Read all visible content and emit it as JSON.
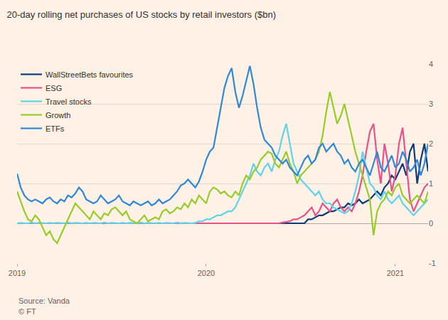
{
  "chart_data": {
    "type": "line",
    "title": "20-day rolling net purchases of US stocks by retail investors ($bn)",
    "source": "Source: Vanda",
    "credit": "© FT",
    "categories": [
      "2019",
      null,
      null,
      null,
      null,
      null,
      null,
      null,
      null,
      null,
      null,
      null,
      null,
      null,
      null,
      null,
      null,
      null,
      null,
      null,
      null,
      null,
      null,
      null,
      null,
      null,
      null,
      null,
      null,
      null,
      null,
      null,
      null,
      null,
      null,
      null,
      null,
      null,
      null,
      null,
      null,
      null,
      null,
      null,
      null,
      null,
      null,
      null,
      null,
      null,
      null,
      null,
      "2020",
      null,
      null,
      null,
      null,
      null,
      null,
      null,
      null,
      null,
      null,
      null,
      null,
      null,
      null,
      null,
      null,
      null,
      null,
      null,
      null,
      null,
      null,
      null,
      null,
      null,
      null,
      null,
      null,
      null,
      null,
      null,
      null,
      null,
      null,
      null,
      null,
      null,
      null,
      null,
      null,
      null,
      null,
      null,
      null,
      null,
      null,
      null,
      null,
      null,
      null,
      null,
      "2021",
      null,
      null,
      null,
      null,
      null,
      null,
      null,
      null,
      null
    ],
    "series": [
      {
        "name": "WallStreetBets favourites",
        "color": "#0d3a78",
        "values": [
          0,
          0,
          0,
          0.01,
          0,
          0,
          0,
          0,
          0.01,
          0,
          0,
          0,
          0,
          0.01,
          0,
          0,
          0,
          0,
          0.01,
          0,
          0,
          0,
          0,
          0.01,
          0,
          0,
          0,
          0,
          0.01,
          0,
          0,
          0,
          0,
          0.01,
          0,
          0,
          0,
          0,
          0.01,
          0,
          0,
          0,
          0,
          0.01,
          0,
          0,
          0,
          0,
          0.01,
          0,
          0,
          0,
          0,
          0.01,
          0,
          0,
          0,
          0,
          0.01,
          0,
          0,
          0,
          0,
          0.01,
          0,
          0,
          0,
          0,
          0.01,
          0,
          0,
          0,
          0,
          0.01,
          0,
          0,
          0,
          0,
          0.01,
          0,
          0.1,
          0.1,
          0.15,
          0.2,
          0.2,
          0.25,
          0.3,
          0.3,
          0.35,
          0.4,
          0.4,
          0.5,
          0.45,
          0.5,
          0.6,
          0.5,
          0.55,
          0.6,
          0.7,
          0.8,
          0.7,
          0.9,
          1.0,
          1.2,
          1.1,
          1.3,
          1.5,
          1.2,
          1.8,
          2.0,
          1.0,
          1.6,
          2.0,
          1.3
        ]
      },
      {
        "name": "ESG",
        "color": "#e8528b",
        "values": [
          0,
          0,
          0.01,
          0,
          0,
          0,
          0.01,
          0,
          0,
          0,
          0,
          0,
          0.01,
          0,
          0,
          0,
          0.01,
          0,
          0,
          0,
          0,
          0,
          0.01,
          0,
          0,
          0,
          0.01,
          0,
          0,
          0,
          0,
          0,
          0.01,
          0,
          0,
          0,
          0.01,
          0,
          0,
          0,
          0,
          0,
          0.01,
          0,
          0,
          0,
          0.01,
          0,
          0,
          0,
          0,
          0,
          0.01,
          0,
          0,
          0,
          0.01,
          0,
          0,
          0,
          0,
          0,
          0.01,
          0,
          0,
          0,
          0.01,
          0,
          0,
          0,
          0,
          0.01,
          0,
          0.02,
          0.03,
          0.05,
          0.1,
          0.1,
          0.15,
          0.2,
          0.3,
          0.4,
          0.2,
          0.3,
          0.5,
          0.4,
          0.3,
          0.5,
          0.6,
          0.4,
          0.3,
          0.4,
          0.3,
          0.5,
          0.8,
          1.2,
          1.8,
          2.3,
          2.5,
          1.6,
          1.0,
          2.0,
          1.5,
          0.8,
          1.2,
          2.0,
          2.4,
          1.5,
          0.6,
          0.3,
          0.5,
          0.7,
          0.9,
          1.0
        ]
      },
      {
        "name": "Travel stocks",
        "color": "#5fd3e8",
        "values": [
          0,
          0.01,
          0,
          0,
          0.02,
          0,
          0.01,
          0,
          0,
          0.01,
          0,
          0.01,
          0,
          0,
          0.02,
          0,
          0.01,
          0,
          0,
          0.01,
          0,
          0.01,
          0,
          0,
          0.02,
          0,
          0.01,
          0,
          0,
          0.01,
          0,
          0.01,
          0,
          0,
          0.02,
          0,
          0.01,
          0,
          0,
          0.01,
          0,
          0.01,
          0,
          0,
          0.02,
          0,
          0.01,
          0,
          0,
          0.01,
          0.05,
          0.05,
          0.1,
          0.1,
          0.15,
          0.2,
          0.2,
          0.25,
          0.3,
          0.3,
          0.4,
          0.6,
          0.8,
          1.0,
          1.2,
          1.5,
          1.3,
          1.2,
          1.4,
          1.5,
          1.3,
          1.6,
          1.8,
          2.2,
          2.5,
          2.0,
          1.5,
          1.3,
          1.1,
          1.0,
          0.9,
          0.8,
          0.7,
          0.8,
          0.6,
          0.5,
          0.5,
          0.4,
          0.35,
          0.3,
          0.25,
          0.3,
          0.5,
          0.8,
          1.2,
          1.8,
          1.4,
          1.0,
          0.9,
          0.7,
          0.6,
          0.8,
          0.6,
          0.5,
          0.6,
          0.7,
          0.5,
          0.4,
          0.3,
          0.2,
          0.3,
          0.4,
          0.5,
          0.6
        ]
      },
      {
        "name": "Growth",
        "color": "#96cc28",
        "values": [
          0.8,
          0.55,
          0.3,
          0.1,
          0.05,
          0.2,
          0.1,
          -0.1,
          -0.3,
          -0.2,
          -0.4,
          -0.5,
          -0.3,
          -0.1,
          0.1,
          0.3,
          0.5,
          0.4,
          0.3,
          0.2,
          0.1,
          0.3,
          0.2,
          0.1,
          0.25,
          0.2,
          0.35,
          0.4,
          0.3,
          0.2,
          0.3,
          0.1,
          0.05,
          0.0,
          0.1,
          0.2,
          0.05,
          0.1,
          0.15,
          0.1,
          0.3,
          0.35,
          0.25,
          0.3,
          0.4,
          0.35,
          0.5,
          0.4,
          0.6,
          0.5,
          0.7,
          0.6,
          0.5,
          0.8,
          0.9,
          0.85,
          0.75,
          0.8,
          0.7,
          0.65,
          0.8,
          0.7,
          1.0,
          1.2,
          1.1,
          1.3,
          1.4,
          1.6,
          1.7,
          1.8,
          1.75,
          1.5,
          1.4,
          1.6,
          1.8,
          1.5,
          1.3,
          1.0,
          1.2,
          1.3,
          1.4,
          1.5,
          1.6,
          1.8,
          2.2,
          2.8,
          3.3,
          2.9,
          2.5,
          2.7,
          3.0,
          2.6,
          2.2,
          1.8,
          1.5,
          1.2,
          0.9,
          0.6,
          -0.3,
          0.3,
          0.5,
          0.6,
          0.8,
          0.7,
          0.9,
          1.0,
          0.7,
          0.6,
          0.5,
          0.6,
          0.7,
          0.6,
          0.5,
          0.8
        ]
      },
      {
        "name": "ETFs",
        "color": "#2f87d8",
        "values": [
          1.25,
          0.9,
          0.7,
          0.6,
          0.55,
          0.6,
          0.55,
          0.5,
          0.6,
          0.65,
          0.55,
          0.5,
          0.6,
          0.55,
          0.7,
          0.65,
          0.75,
          0.9,
          0.8,
          0.6,
          0.55,
          0.5,
          0.55,
          0.7,
          0.6,
          0.5,
          0.55,
          0.6,
          0.7,
          0.55,
          0.5,
          0.45,
          0.55,
          0.5,
          0.45,
          0.5,
          0.55,
          0.45,
          0.5,
          0.6,
          0.5,
          0.55,
          0.6,
          0.7,
          0.8,
          0.95,
          1.0,
          1.1,
          1.0,
          0.9,
          1.05,
          1.3,
          1.6,
          1.8,
          1.9,
          2.4,
          2.9,
          3.4,
          3.7,
          3.9,
          3.3,
          2.9,
          3.2,
          3.6,
          3.95,
          3.5,
          2.9,
          2.4,
          2.1,
          2.0,
          1.9,
          1.7,
          1.6,
          1.5,
          1.6,
          1.4,
          1.3,
          1.2,
          1.4,
          1.6,
          1.7,
          1.5,
          1.6,
          1.9,
          2.0,
          1.8,
          1.9,
          2.0,
          1.8,
          1.7,
          1.5,
          1.6,
          1.4,
          1.3,
          1.5,
          1.6,
          1.4,
          1.2,
          1.5,
          1.8,
          1.4,
          1.3,
          1.5,
          1.7,
          1.4,
          1.5,
          1.8,
          1.6,
          1.3,
          1.4,
          1.6,
          1.2,
          1.5,
          2.0
        ]
      }
    ],
    "ylim": [
      -1,
      4
    ],
    "yticks": [
      -1,
      0,
      1,
      2,
      3,
      4
    ],
    "grid": true,
    "legend": "top left"
  }
}
